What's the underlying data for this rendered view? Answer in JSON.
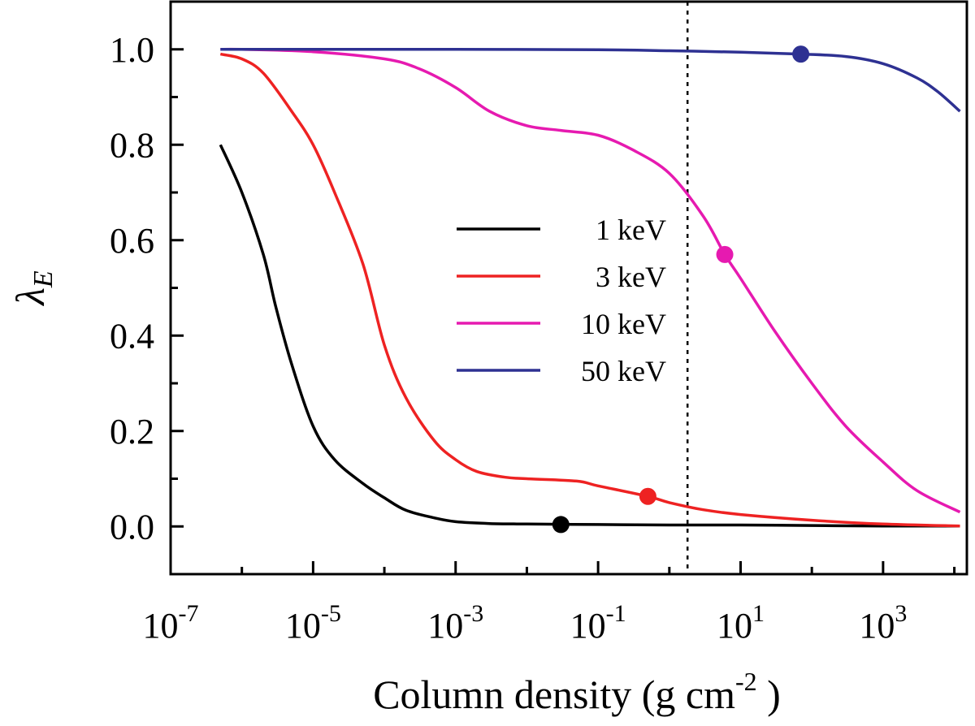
{
  "chart_data": {
    "type": "line",
    "x_scale": "log10",
    "xlabel": "Column density (g cm",
    "xlabel_sup": "-2",
    "xlabel_end": " )",
    "ylabel": "λ",
    "ylabel_sub": "E",
    "xlim": [
      1e-07,
      15000
    ],
    "ylim": [
      -0.1,
      1.1
    ],
    "x_ticks": [
      {
        "base": "10",
        "exp": "-7",
        "value": 1e-07
      },
      {
        "base": "10",
        "exp": "-5",
        "value": 1e-05
      },
      {
        "base": "10",
        "exp": "-3",
        "value": 0.001
      },
      {
        "base": "10",
        "exp": "-1",
        "value": 0.1
      },
      {
        "base": "10",
        "exp": "1",
        "value": 10
      },
      {
        "base": "10",
        "exp": "3",
        "value": 1000
      }
    ],
    "y_ticks": [
      {
        "label": "0.0",
        "value": 0.0
      },
      {
        "label": "0.2",
        "value": 0.2
      },
      {
        "label": "0.4",
        "value": 0.4
      },
      {
        "label": "0.6",
        "value": 0.6
      },
      {
        "label": "0.8",
        "value": 0.8
      },
      {
        "label": "1.0",
        "value": 1.0
      }
    ],
    "reference_line": {
      "orientation": "vertical",
      "style": "dotted",
      "x": 1.8
    },
    "legend_position": "center",
    "series": [
      {
        "name": "1 keV",
        "color": "#000000",
        "x": [
          5e-07,
          1e-06,
          2e-06,
          3e-06,
          5e-06,
          1e-05,
          2e-05,
          5e-05,
          0.0001,
          0.0002,
          0.0005,
          0.001,
          0.003,
          0.01,
          0.1,
          1,
          10,
          100,
          1000,
          12000
        ],
        "y": [
          0.8,
          0.7,
          0.57,
          0.46,
          0.34,
          0.21,
          0.14,
          0.09,
          0.06,
          0.034,
          0.018,
          0.01,
          0.006,
          0.005,
          0.004,
          0.003,
          0.003,
          0.002,
          0.001,
          0.001
        ],
        "marker": {
          "x": 0.03,
          "y": 0.004
        }
      },
      {
        "name": "3 keV",
        "color": "#ee2222",
        "x": [
          5e-07,
          1e-06,
          2e-06,
          5e-06,
          1e-05,
          2e-05,
          5e-05,
          0.0001,
          0.0002,
          0.0005,
          0.001,
          0.002,
          0.005,
          0.01,
          0.05,
          0.1,
          0.5,
          1,
          3,
          10,
          100,
          1000,
          12000
        ],
        "y": [
          0.99,
          0.98,
          0.95,
          0.87,
          0.8,
          0.7,
          0.55,
          0.38,
          0.27,
          0.18,
          0.14,
          0.115,
          0.103,
          0.1,
          0.095,
          0.085,
          0.063,
          0.05,
          0.035,
          0.025,
          0.013,
          0.005,
          0.001
        ],
        "marker": {
          "x": 0.5,
          "y": 0.063
        }
      },
      {
        "name": "10 keV",
        "color": "#e61ab0",
        "x": [
          5e-07,
          1e-06,
          1e-05,
          0.0001,
          0.0003,
          0.001,
          0.003,
          0.01,
          0.03,
          0.1,
          0.3,
          1,
          3,
          6,
          10,
          30,
          100,
          300,
          1000,
          3000,
          12000
        ],
        "y": [
          1.0,
          1.0,
          0.995,
          0.98,
          0.96,
          0.92,
          0.87,
          0.84,
          0.83,
          0.82,
          0.79,
          0.74,
          0.65,
          0.57,
          0.52,
          0.41,
          0.3,
          0.21,
          0.135,
          0.075,
          0.03
        ],
        "marker": {
          "x": 6,
          "y": 0.57
        }
      },
      {
        "name": "50 keV",
        "color": "#2e3192",
        "x": [
          5e-07,
          1e-05,
          0.001,
          0.1,
          1,
          10,
          70,
          300,
          1000,
          3000,
          6000,
          12000
        ],
        "y": [
          1.0,
          1.0,
          1.0,
          0.999,
          0.997,
          0.994,
          0.99,
          0.985,
          0.97,
          0.94,
          0.91,
          0.87
        ],
        "marker": {
          "x": 70,
          "y": 0.99
        }
      }
    ]
  }
}
